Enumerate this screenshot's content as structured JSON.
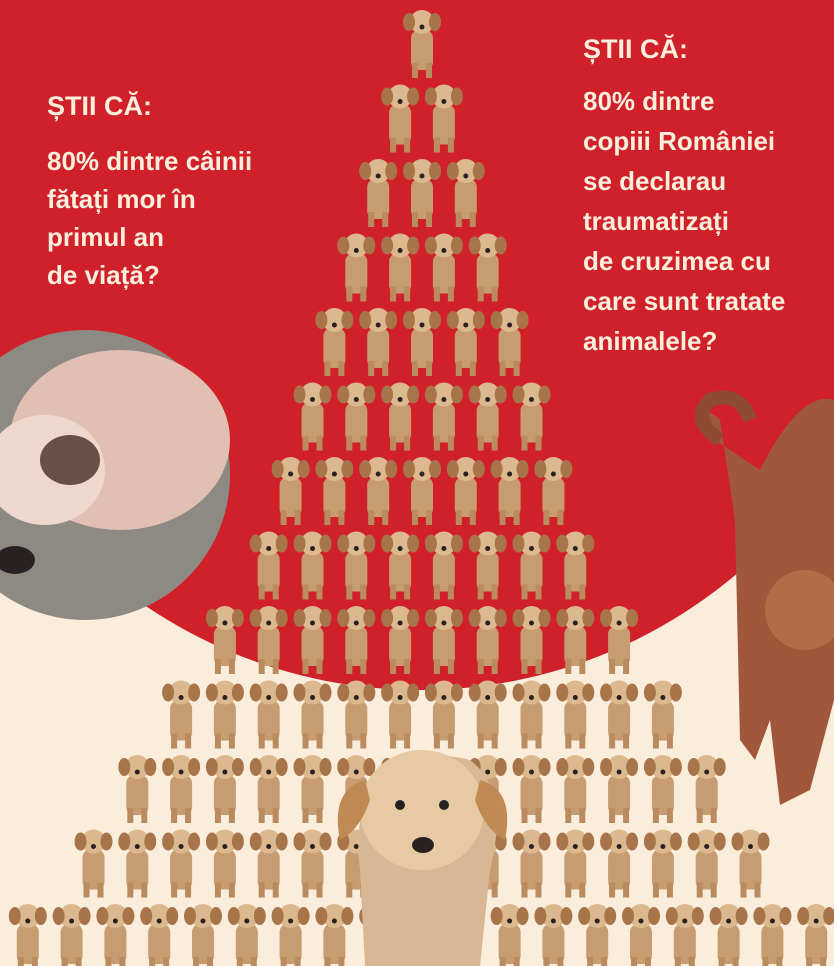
{
  "left": {
    "heading": "ȘTII CĂ:",
    "lines": [
      "80% dintre câinii",
      "fătați mor în",
      "primul an",
      "de viață?"
    ]
  },
  "right": {
    "heading": "ȘTII CĂ:",
    "lines": [
      "80% dintre",
      "copiii României",
      "se declarau",
      "traumatizați",
      "de cruzimea cu",
      "care sunt tratate",
      "animalele?"
    ]
  }
}
